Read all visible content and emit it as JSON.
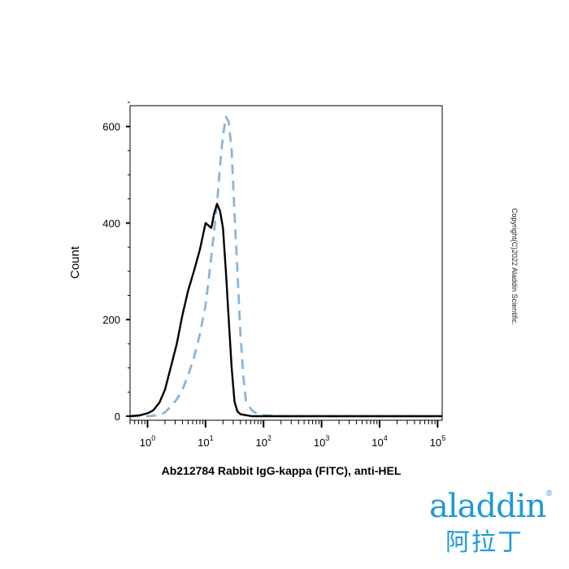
{
  "chart_data": {
    "type": "line",
    "title": "",
    "xlabel": "Ab212784 Rabbit IgG-kappa (FITC), anti-HEL",
    "ylabel": "Count",
    "xscale": "log",
    "xlim": [
      0.5,
      120000
    ],
    "ylim": [
      0,
      660
    ],
    "x_ticks": [
      {
        "base": "10",
        "exp": "0",
        "value": 1
      },
      {
        "base": "10",
        "exp": "1",
        "value": 10
      },
      {
        "base": "10",
        "exp": "2",
        "value": 100
      },
      {
        "base": "10",
        "exp": "3",
        "value": 1000
      },
      {
        "base": "10",
        "exp": "4",
        "value": 10000
      },
      {
        "base": "10",
        "exp": "5",
        "value": 100000
      }
    ],
    "y_ticks": [
      "0",
      "200",
      "400",
      "600"
    ],
    "series": [
      {
        "style": "solid",
        "color": "#000000",
        "x": [
          0.5,
          0.75,
          1.0,
          1.25,
          1.6,
          2.0,
          2.5,
          3.2,
          4.0,
          5.0,
          6.3,
          8.0,
          10.0,
          12.6,
          14.1,
          15.8,
          17.8,
          20.0,
          22.4,
          25.1,
          28.2,
          31.6,
          35.5,
          40,
          50,
          63,
          100,
          1000,
          10000,
          120000
        ],
        "y": [
          0,
          2,
          6,
          12,
          28,
          55,
          100,
          150,
          210,
          260,
          300,
          345,
          400,
          390,
          420,
          440,
          425,
          390,
          300,
          200,
          100,
          30,
          10,
          4,
          2,
          0,
          0,
          0,
          0,
          0
        ]
      },
      {
        "style": "dashed",
        "color": "#8ab6d8",
        "x": [
          0.5,
          1.0,
          1.6,
          2.0,
          2.5,
          3.2,
          4.0,
          5.0,
          6.3,
          8.0,
          10.0,
          12.6,
          15.8,
          17.8,
          20.0,
          22.4,
          25.1,
          28.2,
          31.6,
          35.5,
          40,
          45,
          50,
          63,
          80,
          100,
          200,
          1000,
          10000,
          120000
        ],
        "y": [
          0,
          0,
          2,
          8,
          20,
          35,
          55,
          85,
          120,
          170,
          230,
          330,
          440,
          520,
          580,
          620,
          610,
          550,
          420,
          300,
          170,
          80,
          30,
          12,
          4,
          2,
          0,
          0,
          0,
          0
        ]
      }
    ]
  },
  "copyright": "Copyright(C)2022 Aladdin Scientific.",
  "logo": {
    "wordmark": "aladdin",
    "chinese": "阿拉丁",
    "reg": "®"
  }
}
